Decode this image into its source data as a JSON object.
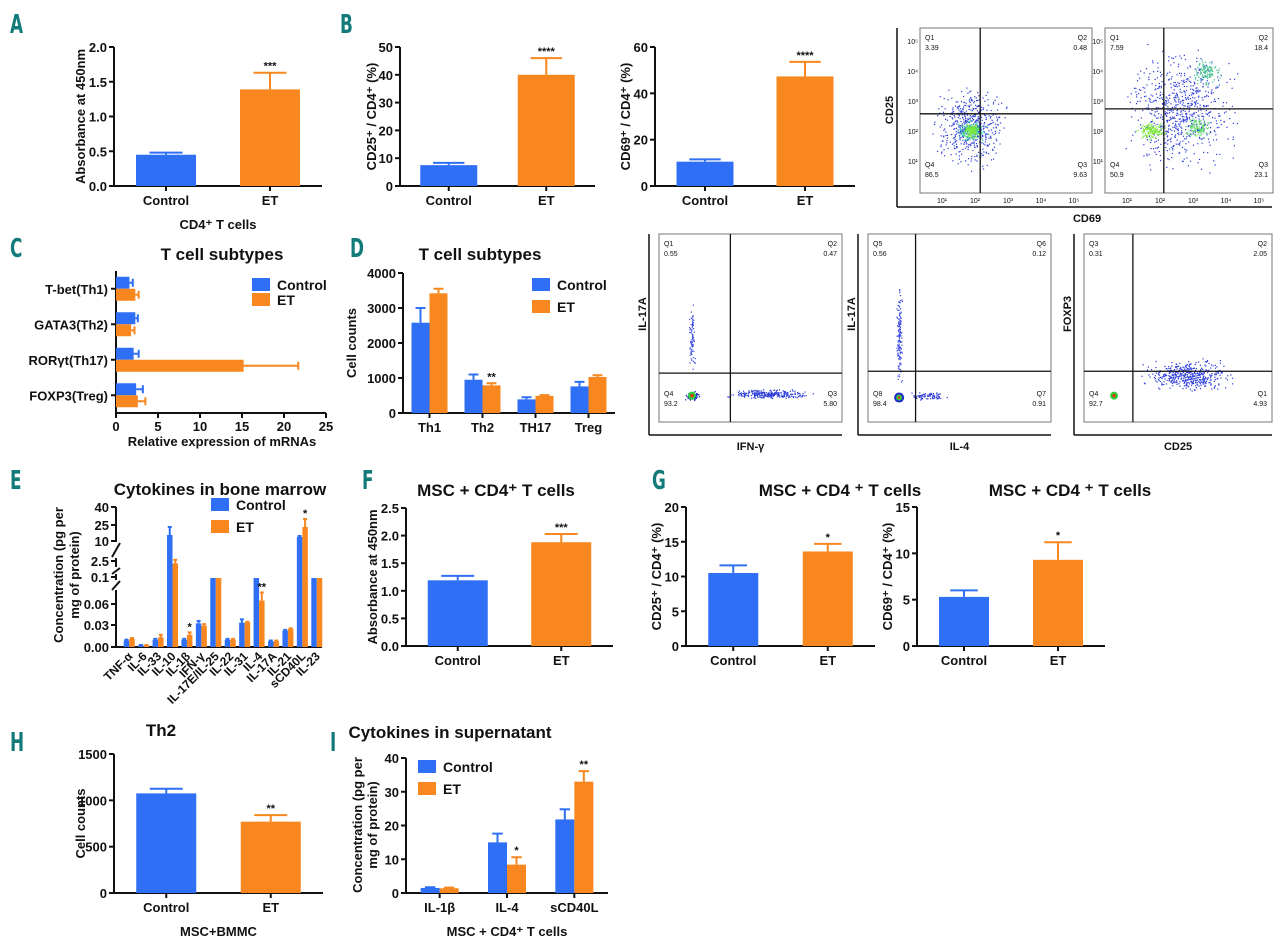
{
  "colors": {
    "control": "#2f6ff5",
    "et": "#f7871e",
    "letter": "#127a78"
  },
  "panel_letters": [
    "A",
    "B",
    "C",
    "D",
    "E",
    "F",
    "G",
    "H",
    "I"
  ],
  "legend": {
    "control": "Control",
    "et": "ET"
  },
  "chart_data": [
    {
      "id": "A",
      "type": "bar",
      "title": "",
      "categories": [
        "Control",
        "ET"
      ],
      "values": [
        0.45,
        1.39
      ],
      "errors": [
        0.03,
        0.24
      ],
      "significance": [
        "",
        "***"
      ],
      "ylabel": "Absorbance at 450nm",
      "xlabel": "CD4⁺ T cells",
      "ylim": [
        0,
        2.0
      ],
      "yticks": [
        "0.0",
        "0.5",
        "1.0",
        "1.5",
        "2.0"
      ],
      "ytick_values": [
        0,
        0.5,
        1.0,
        1.5,
        2.0
      ]
    },
    {
      "id": "B1",
      "type": "bar",
      "title": "",
      "categories": [
        "Control",
        "ET"
      ],
      "values": [
        7.5,
        40
      ],
      "errors": [
        0.8,
        6
      ],
      "significance": [
        "",
        "****"
      ],
      "ylabel": "CD25⁺ / CD4⁺ (%)",
      "xlabel": "",
      "ylim": [
        0,
        50
      ],
      "yticks": [
        "0",
        "10",
        "20",
        "30",
        "40",
        "50"
      ],
      "ytick_values": [
        0,
        10,
        20,
        30,
        40,
        50
      ]
    },
    {
      "id": "B2",
      "type": "bar",
      "title": "",
      "categories": [
        "Control",
        "ET"
      ],
      "values": [
        10.5,
        47.3
      ],
      "errors": [
        1,
        6.3
      ],
      "significance": [
        "",
        "****"
      ],
      "ylabel": "CD69⁺ / CD4⁺ (%)",
      "xlabel": "",
      "ylim": [
        0,
        60
      ],
      "yticks": [
        "0",
        "20",
        "40",
        "60"
      ],
      "ytick_values": [
        0,
        20,
        40,
        60
      ]
    },
    {
      "id": "C",
      "type": "bar",
      "orientation": "horizontal",
      "title": "T cell subtypes",
      "categories": [
        "T-bet(Th1)",
        "GATA3(Th2)",
        "RORγt(Th17)",
        "FOXP3(Treg)"
      ],
      "series": [
        {
          "name": "Control",
          "values": [
            1.6,
            2.3,
            2.1,
            2.4
          ],
          "errors": [
            0.4,
            0.3,
            0.6,
            0.8
          ]
        },
        {
          "name": "ET",
          "values": [
            2.3,
            1.8,
            15.2,
            2.6
          ],
          "errors": [
            0.4,
            0.4,
            6.5,
            0.9
          ]
        }
      ],
      "xlabel": "Relative expression of mRNAs",
      "xlim": [
        0,
        25
      ],
      "xticks": [
        "0",
        "5",
        "10",
        "15",
        "20",
        "25"
      ],
      "xtick_values": [
        0,
        5,
        10,
        15,
        20,
        25
      ],
      "legend_position": "top-right"
    },
    {
      "id": "D",
      "type": "bar",
      "title": "T cell subtypes",
      "categories": [
        "Th1",
        "Th2",
        "TH17",
        "Treg"
      ],
      "series": [
        {
          "name": "Control",
          "values": [
            2580,
            950,
            390,
            760
          ],
          "errors": [
            420,
            150,
            60,
            130
          ]
        },
        {
          "name": "ET",
          "values": [
            3420,
            790,
            490,
            1030
          ],
          "errors": [
            130,
            60,
            20,
            50
          ]
        }
      ],
      "significance": [
        "",
        "**",
        "",
        ""
      ],
      "ylabel": "Cell counts",
      "ylim": [
        0,
        4000
      ],
      "yticks": [
        "0",
        "1000",
        "2000",
        "3000",
        "4000"
      ],
      "ytick_values": [
        0,
        1000,
        2000,
        3000,
        4000
      ],
      "legend_position": "top-right"
    },
    {
      "id": "E",
      "type": "bar",
      "title": "Cytokines in bone marrow",
      "axis": "broken",
      "categories": [
        "TNF-α",
        "IL-6",
        "IL-33",
        "IL-10",
        "IL-1β",
        "IFN-γ",
        "IL-17E/IL-25",
        "IL-22",
        "IL-31",
        "IL-4",
        "IL-17A",
        "IL-21",
        "sCD40L",
        "IL-23"
      ],
      "series": [
        {
          "name": "Control",
          "values": [
            0.008,
            0.002,
            0.009,
            12,
            0.009,
            0.029,
            0.1,
            0.009,
            0.03,
            0.1,
            0.007,
            0.02,
            10,
            0.1
          ],
          "errors": [
            0.001,
            0.0005,
            0.001,
            8,
            0.001,
            0.003,
            0,
            0.001,
            0.004,
            0,
            0.001,
            0.001,
            1,
            0
          ]
        },
        {
          "name": "ET",
          "values": [
            0.01,
            0.002,
            0.012,
            1.5,
            0.015,
            0.026,
            0.1,
            0.009,
            0.03,
            0.057,
            0.007,
            0.022,
            20,
            0.1
          ],
          "errors": [
            0.001,
            0.0005,
            0.003,
            1,
            0.003,
            0.002,
            0,
            0.001,
            0.001,
            0.01,
            0.001,
            0.001,
            8,
            0
          ]
        }
      ],
      "significance": [
        "",
        "",
        "",
        "",
        "*",
        "",
        "",
        "",
        "",
        "**",
        "",
        "",
        "*",
        ""
      ],
      "ylabel": "Concentration (pg per mg of protein)",
      "yticks": [
        "0.00",
        "0.03",
        "0.06",
        "0.1",
        "2.5",
        "10",
        "25",
        "40"
      ],
      "legend_position": "top-right"
    },
    {
      "id": "F",
      "type": "bar",
      "title": "MSC + CD4⁺ T  cells",
      "categories": [
        "Control",
        "ET"
      ],
      "values": [
        1.19,
        1.88
      ],
      "errors": [
        0.08,
        0.15
      ],
      "significance": [
        "",
        "***"
      ],
      "ylabel": "Absorbance at 450nm",
      "ylim": [
        0,
        2.5
      ],
      "yticks": [
        "0.0",
        "0.5",
        "1.0",
        "1.5",
        "2.0",
        "2.5"
      ],
      "ytick_values": [
        0,
        0.5,
        1.0,
        1.5,
        2.0,
        2.5
      ]
    },
    {
      "id": "G1",
      "type": "bar",
      "title": "MSC + CD4 ⁺ T cells",
      "categories": [
        "Control",
        "ET"
      ],
      "values": [
        10.5,
        13.6
      ],
      "errors": [
        1.1,
        1.1
      ],
      "significance": [
        "",
        "*"
      ],
      "ylabel": "CD25⁺ / CD4⁺ (%)",
      "ylim": [
        0,
        20
      ],
      "yticks": [
        "0",
        "5",
        "10",
        "15",
        "20"
      ],
      "ytick_values": [
        0,
        5,
        10,
        15,
        20
      ]
    },
    {
      "id": "G2",
      "type": "bar",
      "title": "MSC + CD4 ⁺ T cells",
      "categories": [
        "Control",
        "ET"
      ],
      "values": [
        5.3,
        9.3
      ],
      "errors": [
        0.7,
        1.9
      ],
      "significance": [
        "",
        "*"
      ],
      "ylabel": "CD69⁺ / CD4⁺ (%)",
      "ylim": [
        0,
        15
      ],
      "yticks": [
        "0",
        "5",
        "10",
        "15"
      ],
      "ytick_values": [
        0,
        5,
        10,
        15
      ]
    },
    {
      "id": "H",
      "type": "bar",
      "title": "Th2",
      "categories": [
        "Control",
        "ET"
      ],
      "values": [
        1075,
        770
      ],
      "errors": [
        50,
        70
      ],
      "significance": [
        "",
        "**"
      ],
      "ylabel": "Cell counts",
      "xlabel": "MSC+BMMC",
      "ylim": [
        0,
        1500
      ],
      "yticks": [
        "0",
        "500",
        "1000",
        "1500"
      ],
      "ytick_values": [
        0,
        500,
        1000,
        1500
      ]
    },
    {
      "id": "I",
      "type": "bar",
      "title": "Cytokines in supernatant",
      "categories": [
        "IL-1β",
        "IL-4",
        "sCD40L"
      ],
      "series": [
        {
          "name": "Control",
          "values": [
            1.5,
            15.0,
            21.8
          ],
          "errors": [
            0.2,
            2.6,
            3.0
          ]
        },
        {
          "name": "ET",
          "values": [
            1.4,
            8.4,
            33.0
          ],
          "errors": [
            0.2,
            2.2,
            3.1
          ]
        }
      ],
      "significance": [
        "",
        "*",
        "**"
      ],
      "ylabel": "Concentration (pg per mg of protein)",
      "xlabel": "MSC + CD4⁺ T cells",
      "ylim": [
        0,
        40
      ],
      "yticks": [
        "0",
        "10",
        "20",
        "30",
        "40"
      ],
      "ytick_values": [
        0,
        10,
        20,
        30,
        40
      ],
      "legend_position": "top-left"
    }
  ],
  "flow_plots": [
    {
      "id": "B-flow-control",
      "xlabel": "CD69",
      "ylabel": "CD25",
      "quadrants": [
        {
          "name": "Q1",
          "value": "3.39"
        },
        {
          "name": "Q2",
          "value": "0.48"
        },
        {
          "name": "Q4",
          "value": "86.5"
        },
        {
          "name": "Q3",
          "value": "9.63"
        }
      ],
      "xticks": [
        "10¹",
        "10²",
        "10³",
        "10⁴",
        "10⁵"
      ],
      "yticks": [
        "10⁵",
        "10⁴",
        "10³",
        "10²",
        "10¹"
      ]
    },
    {
      "id": "B-flow-et",
      "xlabel": "CD69",
      "ylabel": "CD25",
      "quadrants": [
        {
          "name": "Q1",
          "value": "7.59"
        },
        {
          "name": "Q2",
          "value": "18.4"
        },
        {
          "name": "Q4",
          "value": "50.9"
        },
        {
          "name": "Q3",
          "value": "23.1"
        }
      ],
      "xticks": [
        "10¹",
        "10²",
        "10³",
        "10⁴",
        "10⁵"
      ],
      "yticks": [
        "10⁵",
        "10⁴",
        "10³",
        "10²",
        "10¹"
      ]
    },
    {
      "id": "D-flow-1",
      "xlabel": "IFN-γ",
      "ylabel": "IL-17A",
      "quadrants": [
        {
          "name": "Q1",
          "value": "0.55"
        },
        {
          "name": "Q2",
          "value": "0.47"
        },
        {
          "name": "Q4",
          "value": "93.2"
        },
        {
          "name": "Q3",
          "value": "5.80"
        }
      ]
    },
    {
      "id": "D-flow-2",
      "xlabel": "IL-4",
      "ylabel": "IL-17A",
      "quadrants": [
        {
          "name": "Q5",
          "value": "0.56"
        },
        {
          "name": "Q6",
          "value": "0.12"
        },
        {
          "name": "Q8",
          "value": "98.4"
        },
        {
          "name": "Q7",
          "value": "0.91"
        }
      ]
    },
    {
      "id": "D-flow-3",
      "xlabel": "CD25",
      "ylabel": "FOXP3",
      "quadrants": [
        {
          "name": "Q3",
          "value": "0.31"
        },
        {
          "name": "Q2",
          "value": "2.05"
        },
        {
          "name": "Q4",
          "value": "92.7"
        },
        {
          "name": "Q1",
          "value": "4.93"
        }
      ]
    }
  ]
}
